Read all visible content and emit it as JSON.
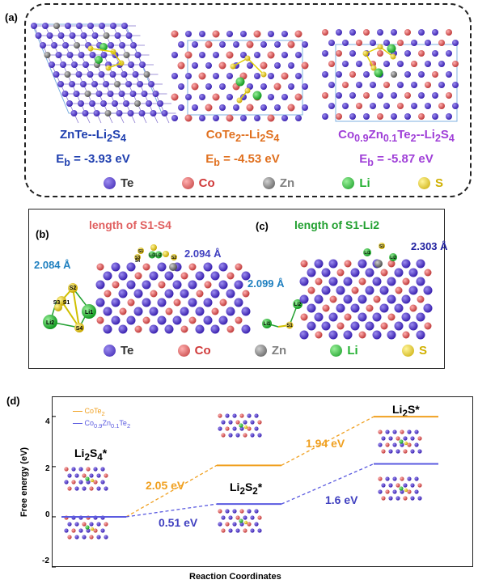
{
  "panel_a": {
    "tag": "(a)",
    "structures": [
      {
        "title_main": "ZnTe--Li",
        "title_sub1": "2",
        "title_mid": "S",
        "title_sub2": "4",
        "eb_label": "E",
        "eb_sub": "b",
        "eb_value": "= -3.93 eV",
        "color": "#1f3faf"
      },
      {
        "title_main": "CoTe",
        "title_sub1": "2",
        "title_mid": "--Li",
        "title_sub2": "2",
        "title_end": "S",
        "title_sub3": "4",
        "eb_label": "E",
        "eb_sub": "b",
        "eb_value": "= -4.53 eV",
        "color": "#e0701f"
      },
      {
        "title_main": "Co",
        "title_sub1": "0.9",
        "title_mid": "Zn",
        "title_sub2": "0.1",
        "title_end": "Te",
        "title_sub3": "2",
        "title_tail": "--Li",
        "title_sub4": "2",
        "title_tail2": "S",
        "title_sub5": "4",
        "eb_label": "E",
        "eb_sub": "b",
        "eb_value": "= -5.87 eV",
        "color": "#a040d8"
      }
    ]
  },
  "legend": [
    {
      "label": "Te",
      "color": "#5a3fd0"
    },
    {
      "label": "Co",
      "color": "#e06060"
    },
    {
      "label": "Zn",
      "color": "#808080"
    },
    {
      "label": "Li",
      "color": "#22c030"
    },
    {
      "label": "S",
      "color": "#e8d020"
    }
  ],
  "panel_bc": {
    "tag_b": "(b)",
    "tag_c": "(c)",
    "title_b": "length of S1-S4",
    "title_c": "length of S1-Li2",
    "b_val_left": "2.084 Å",
    "b_val_right": "2.094 Å",
    "c_val_left": "2.099 Å",
    "c_val_right": "2.303 Å",
    "atom_labels_b": [
      "S2",
      "S1",
      "S3",
      "Li1",
      "Li2",
      "S4"
    ],
    "atom_labels_c": [
      "Li2",
      "Li1",
      "S1"
    ],
    "atom_labels_b_top": [
      "S1",
      "Li1",
      "Li2",
      "S3",
      "S4",
      "S2"
    ],
    "atom_labels_c_top": [
      "S1",
      "Li1",
      "Li2"
    ]
  },
  "panel_d": {
    "tag": "(d)",
    "ylabel": "Free energy (eV)",
    "xlabel": "Reaction Coordinates",
    "yticks": [
      "4",
      "2",
      "0",
      "-2"
    ],
    "series": [
      {
        "name": "CoTe",
        "sub": "2",
        "color": "#f0a020"
      },
      {
        "name": "Co",
        "sub": "0.9",
        "name2": "Zn",
        "sub2": "0.1",
        "name3": "Te",
        "sub3": "2",
        "color": "#5a5ae0"
      }
    ],
    "states": [
      {
        "main": "Li",
        "sub1": "2",
        "mid": "S",
        "sub2": "4",
        "tail": "*"
      },
      {
        "main": "Li",
        "sub1": "2",
        "mid": "S",
        "sub2": "2",
        "tail": "*"
      },
      {
        "main": "Li",
        "sub1": "2",
        "mid": "S*",
        "sub2": "",
        "tail": ""
      }
    ],
    "energy_labels": [
      {
        "text": "2.05 eV",
        "color": "#f0a020"
      },
      {
        "text": "1.94 eV",
        "color": "#f0a020"
      },
      {
        "text": "0.51 eV",
        "color": "#4040c0"
      },
      {
        "text": "1.6 eV",
        "color": "#4040c0"
      }
    ],
    "chart_data": {
      "type": "line",
      "categories": [
        "Li2S4*",
        "Li2S2*",
        "Li2S*"
      ],
      "series": [
        {
          "name": "CoTe2",
          "values": [
            0,
            2.05,
            3.99
          ]
        },
        {
          "name": "Co0.9Zn0.1Te2",
          "values": [
            0,
            0.51,
            2.11
          ]
        }
      ],
      "ylim": [
        -2,
        4.8
      ],
      "ylabel": "Free energy (eV)",
      "xlabel": "Reaction Coordinates"
    }
  }
}
